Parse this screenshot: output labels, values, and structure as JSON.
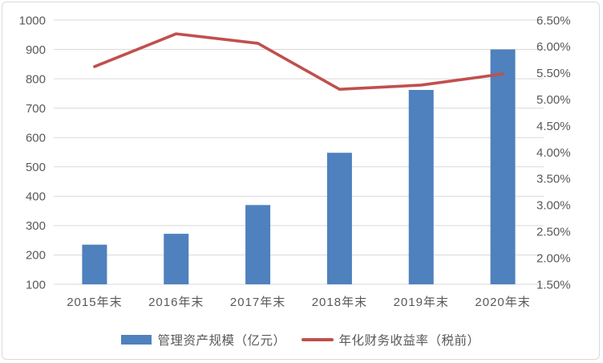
{
  "chart_data": {
    "type": "combo-bar-line",
    "categories": [
      "2015年末",
      "2016年末",
      "2017年末",
      "2018年末",
      "2019年末",
      "2020年末"
    ],
    "series": [
      {
        "name": "管理资产规模（亿元）",
        "type": "bar",
        "axis": "left",
        "color": "#4E81BD",
        "values": [
          235,
          272,
          370,
          548,
          762,
          900
        ]
      },
      {
        "name": "年化财务收益率（税前）",
        "type": "line",
        "axis": "right",
        "color": "#C0504D",
        "values": [
          5.62,
          6.24,
          6.06,
          5.19,
          5.27,
          5.48
        ]
      }
    ],
    "left_axis": {
      "min": 100,
      "max": 1000,
      "step": 100,
      "ticks": [
        "100",
        "200",
        "300",
        "400",
        "500",
        "600",
        "700",
        "800",
        "900",
        "1000"
      ]
    },
    "right_axis": {
      "min": 1.5,
      "max": 6.5,
      "step": 0.5,
      "ticks": [
        "1.50%",
        "2.00%",
        "2.50%",
        "3.00%",
        "3.50%",
        "4.00%",
        "4.50%",
        "5.00%",
        "5.50%",
        "6.00%",
        "6.50%"
      ]
    },
    "title": "",
    "grid": true,
    "legend_position": "bottom"
  },
  "legend": {
    "items": [
      {
        "label": "管理资产规模（亿元）",
        "swatch": "bar"
      },
      {
        "label": "年化财务收益率（税前）",
        "swatch": "line"
      }
    ]
  },
  "colors": {
    "bar": "#4E81BD",
    "line": "#C0504D",
    "axis_text": "#595959",
    "gridline": "#D9D9D9",
    "background": "#FFFFFF",
    "border": "#D9D9D9"
  }
}
